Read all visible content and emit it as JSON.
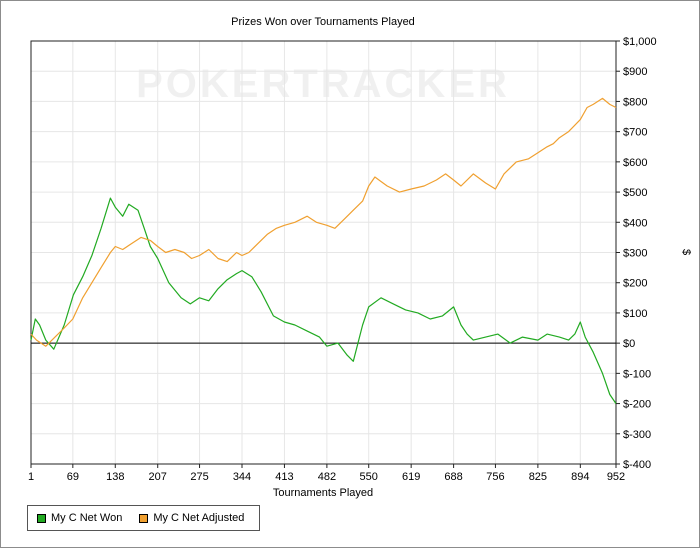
{
  "chart_data": {
    "type": "line",
    "title": "Prizes Won over Tournaments Played",
    "xlabel": "Tournaments Played",
    "ylabel": "$",
    "watermark": "POKERTRACKER",
    "x_ticks": [
      1,
      69,
      138,
      207,
      275,
      344,
      413,
      482,
      550,
      619,
      688,
      756,
      825,
      894,
      952
    ],
    "xlim": [
      1,
      952
    ],
    "ylim": [
      -400,
      1000
    ],
    "y_ticks": [
      1000,
      900,
      800,
      700,
      600,
      500,
      400,
      300,
      200,
      100,
      0,
      -100,
      -200,
      -300,
      -400
    ],
    "y_tick_labels": [
      "$1,000",
      "$900",
      "$800",
      "$700",
      "$600",
      "$500",
      "$400",
      "$300",
      "$200",
      "$100",
      "$0",
      "$-100",
      "$-200",
      "$-300",
      "$-400"
    ],
    "grid": true,
    "legend_position": "bottom-left",
    "series": [
      {
        "name": "My C Net Won",
        "color": "#22aa22",
        "x": [
          1,
          8,
          15,
          25,
          38,
          55,
          70,
          85,
          100,
          115,
          130,
          138,
          150,
          160,
          175,
          185,
          195,
          207,
          225,
          245,
          260,
          275,
          290,
          305,
          320,
          335,
          344,
          360,
          375,
          395,
          413,
          430,
          450,
          470,
          482,
          500,
          515,
          525,
          540,
          550,
          570,
          590,
          610,
          630,
          650,
          670,
          688,
          700,
          710,
          720,
          740,
          760,
          780,
          800,
          825,
          840,
          860,
          875,
          885,
          894,
          902,
          915,
          930,
          942,
          952
        ],
        "y": [
          10,
          80,
          60,
          10,
          -20,
          60,
          160,
          220,
          290,
          380,
          480,
          450,
          420,
          460,
          440,
          380,
          320,
          280,
          200,
          150,
          130,
          150,
          140,
          180,
          210,
          230,
          240,
          220,
          170,
          90,
          70,
          60,
          40,
          20,
          -10,
          0,
          -40,
          -60,
          60,
          120,
          150,
          130,
          110,
          100,
          80,
          90,
          120,
          60,
          30,
          10,
          20,
          30,
          0,
          20,
          10,
          30,
          20,
          10,
          30,
          70,
          20,
          -30,
          -100,
          -170,
          -200
        ]
      },
      {
        "name": "My C Net Adjusted",
        "color": "#f0a030",
        "x": [
          1,
          10,
          25,
          40,
          55,
          69,
          85,
          100,
          115,
          130,
          138,
          150,
          165,
          180,
          195,
          207,
          220,
          235,
          250,
          262,
          275,
          290,
          305,
          320,
          335,
          344,
          355,
          370,
          385,
          400,
          413,
          430,
          450,
          465,
          482,
          495,
          510,
          525,
          540,
          550,
          560,
          580,
          600,
          619,
          640,
          660,
          675,
          688,
          700,
          720,
          740,
          756,
          770,
          790,
          810,
          825,
          840,
          850,
          860,
          875,
          894,
          905,
          915,
          930,
          942,
          952
        ],
        "y": [
          30,
          10,
          -10,
          20,
          50,
          80,
          150,
          200,
          250,
          300,
          320,
          310,
          330,
          350,
          340,
          320,
          300,
          310,
          300,
          280,
          290,
          310,
          280,
          270,
          300,
          290,
          300,
          330,
          360,
          380,
          390,
          400,
          420,
          400,
          390,
          380,
          410,
          440,
          470,
          520,
          550,
          520,
          500,
          510,
          520,
          540,
          560,
          540,
          520,
          560,
          530,
          510,
          560,
          600,
          610,
          630,
          650,
          660,
          680,
          700,
          740,
          780,
          790,
          810,
          790,
          780
        ]
      }
    ]
  }
}
